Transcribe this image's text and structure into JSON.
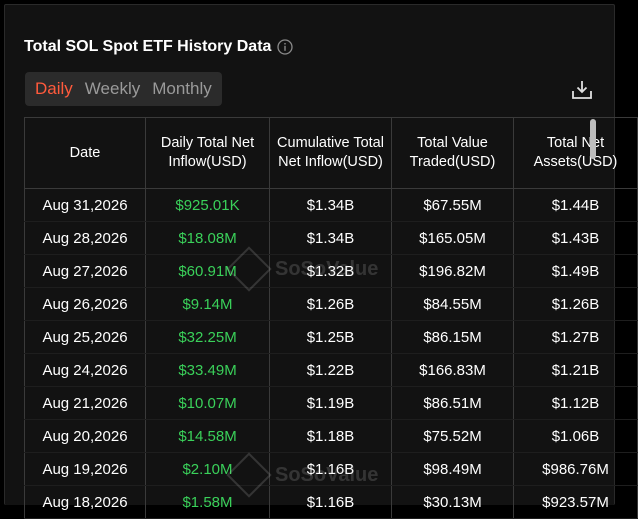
{
  "header": {
    "title": "Total SOL Spot ETF History Data",
    "info_icon": "info-circle-icon"
  },
  "tabs": [
    {
      "label": "Daily",
      "active": true
    },
    {
      "label": "Weekly",
      "active": false
    },
    {
      "label": "Monthly",
      "active": false
    }
  ],
  "toolbar": {
    "download_icon": "download-icon"
  },
  "table": {
    "columns": [
      "Date",
      "Daily Total Net Inflow(USD)",
      "Cumulative Total Net Inflow(USD)",
      "Total Value Traded(USD)",
      "Total Net Assets(USD)"
    ],
    "rows": [
      [
        "Aug 31,2026",
        "$925.01K",
        "$1.34B",
        "$67.55M",
        "$1.44B"
      ],
      [
        "Aug 28,2026",
        "$18.08M",
        "$1.34B",
        "$165.05M",
        "$1.43B"
      ],
      [
        "Aug 27,2026",
        "$60.91M",
        "$1.32B",
        "$196.82M",
        "$1.49B"
      ],
      [
        "Aug 26,2026",
        "$9.14M",
        "$1.26B",
        "$84.55M",
        "$1.26B"
      ],
      [
        "Aug 25,2026",
        "$32.25M",
        "$1.25B",
        "$86.15M",
        "$1.27B"
      ],
      [
        "Aug 24,2026",
        "$33.49M",
        "$1.22B",
        "$166.83M",
        "$1.21B"
      ],
      [
        "Aug 21,2026",
        "$10.07M",
        "$1.19B",
        "$86.51M",
        "$1.12B"
      ],
      [
        "Aug 20,2026",
        "$14.58M",
        "$1.18B",
        "$75.52M",
        "$1.06B"
      ],
      [
        "Aug 19,2026",
        "$2.10M",
        "$1.16B",
        "$98.49M",
        "$986.76M"
      ],
      [
        "Aug 18,2026",
        "$1.58M",
        "$1.16B",
        "$30.13M",
        "$923.57M"
      ]
    ]
  },
  "watermark": {
    "text": "SoSoValue"
  },
  "colors": {
    "accent": "#ff5a3c",
    "positive": "#3ad15a",
    "background": "#121212"
  }
}
